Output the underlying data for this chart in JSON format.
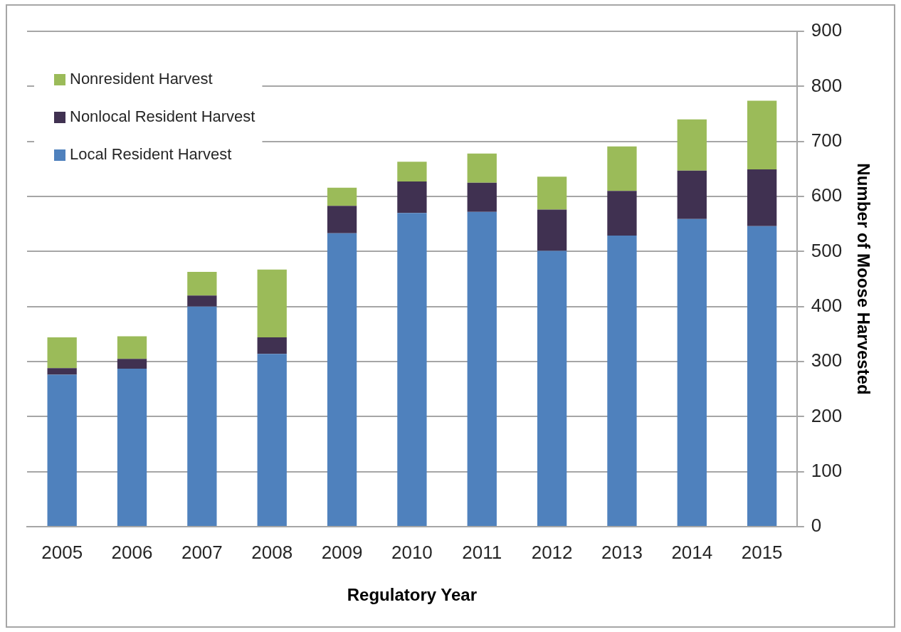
{
  "chart_data": {
    "type": "bar",
    "stacked": true,
    "xlabel": "Regulatory Year",
    "ylabel": "Number of Moose Harvested",
    "categories": [
      "2005",
      "2006",
      "2007",
      "2008",
      "2009",
      "2010",
      "2011",
      "2012",
      "2013",
      "2014",
      "2015"
    ],
    "series": [
      {
        "name": "Local Resident Harvest",
        "color": "#4f81bd",
        "values": [
          276,
          287,
          400,
          314,
          533,
          570,
          572,
          501,
          529,
          559,
          546
        ]
      },
      {
        "name": "Nonlocal Resident Harvest",
        "color": "#403151",
        "values": [
          12,
          18,
          20,
          30,
          50,
          57,
          53,
          75,
          81,
          88,
          103
        ]
      },
      {
        "name": "Nonresident Harvest",
        "color": "#9bbb59",
        "values": [
          56,
          41,
          43,
          123,
          33,
          36,
          53,
          60,
          81,
          93,
          125
        ]
      }
    ],
    "ylim": [
      0,
      900
    ],
    "yticks": [
      0,
      100,
      200,
      300,
      400,
      500,
      600,
      700,
      800,
      900
    ],
    "grid": "y",
    "legend": "top left"
  }
}
